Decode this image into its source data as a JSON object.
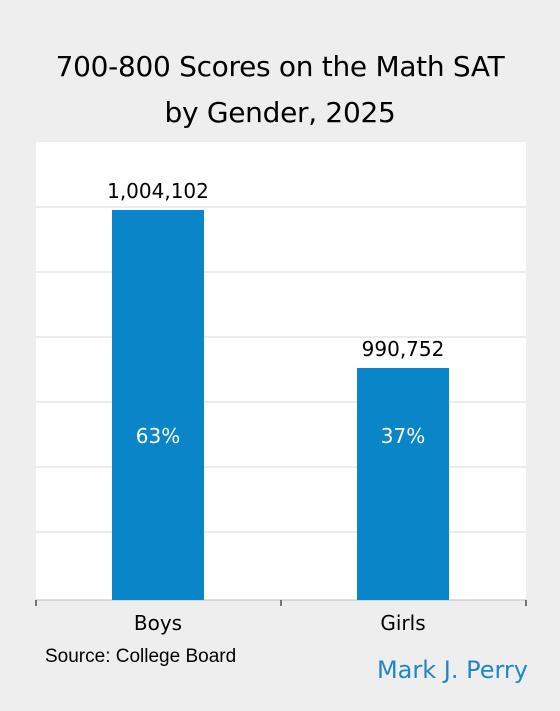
{
  "title_line1": "700-800 Scores on the Math SAT",
  "title_line2": "by Gender, 2025",
  "source": "Source: College Board",
  "author": "Mark J. Perry",
  "colors": {
    "bar": "#0a86c8",
    "background": "#eeeeee",
    "plot": "#ffffff",
    "grid": "#d9d9d9",
    "author": "#1f87c9"
  },
  "chart_data": {
    "type": "bar",
    "categories": [
      "Boys",
      "Girls"
    ],
    "values": [
      1004102,
      990752
    ],
    "data_labels": [
      "1,004,102",
      "990,752"
    ],
    "bar_labels": [
      "63%",
      "37%"
    ],
    "grid": true,
    "legend": "none"
  }
}
